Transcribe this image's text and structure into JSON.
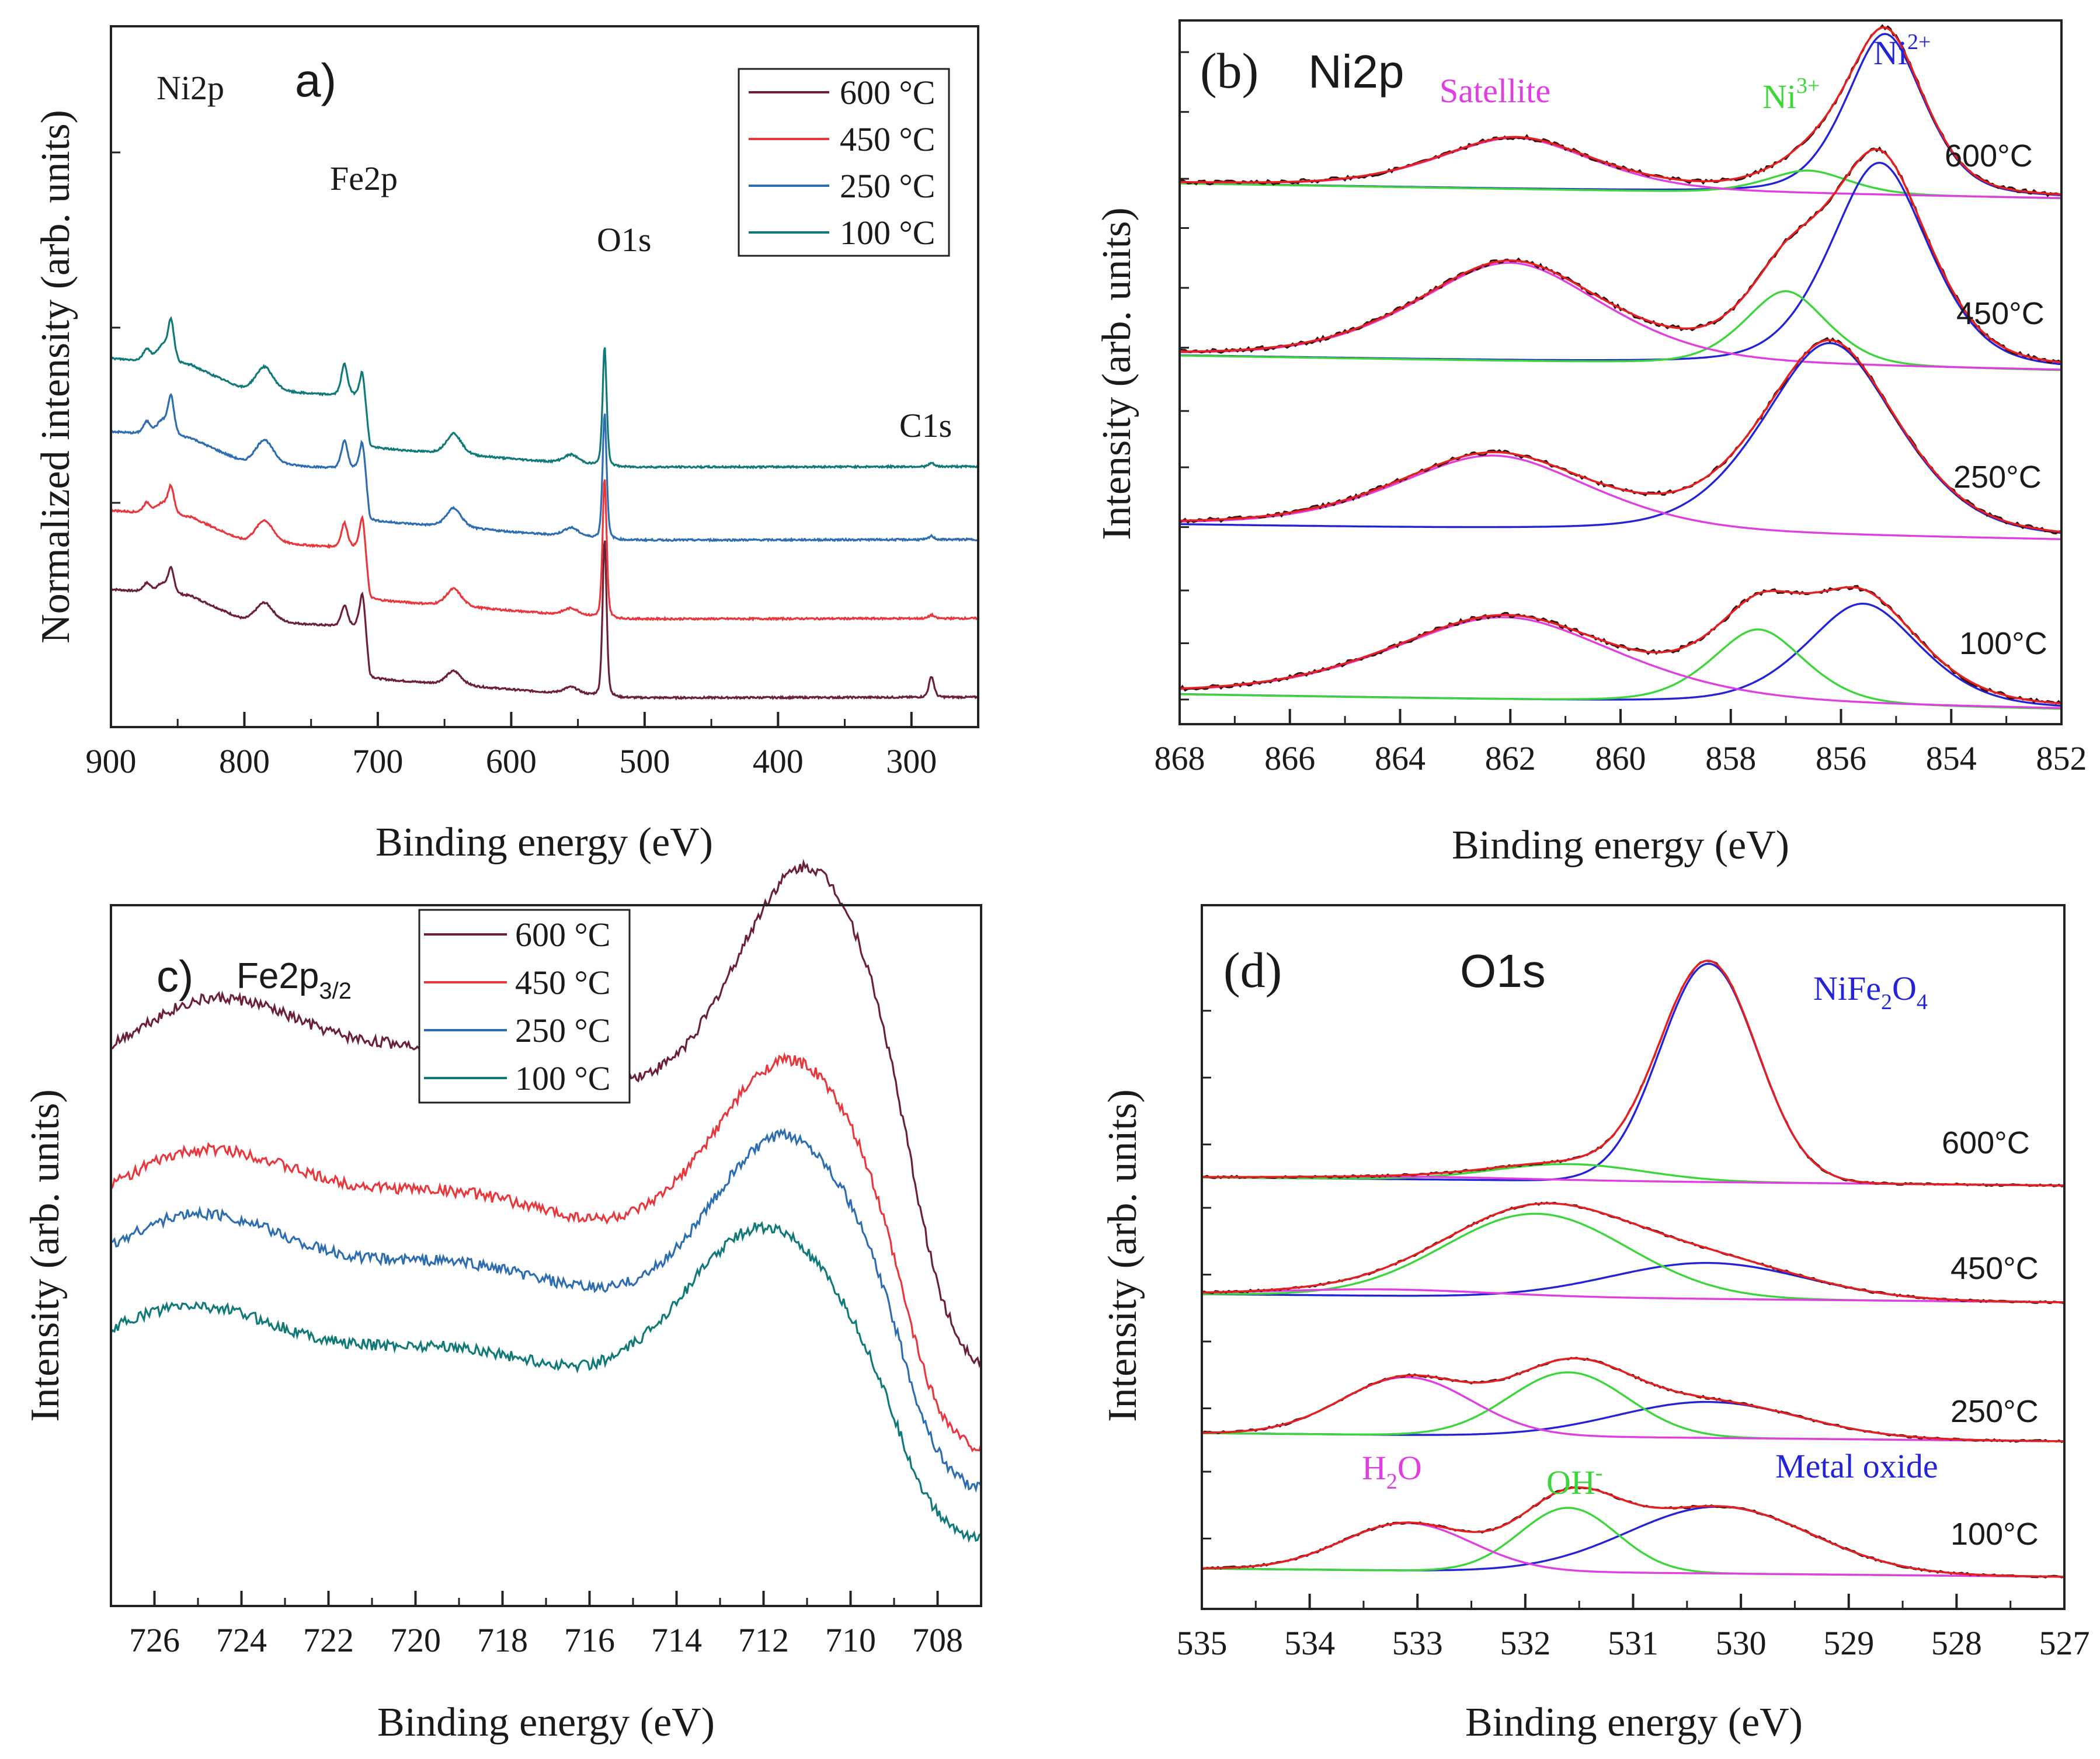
{
  "chart_data": [
    {
      "panel": "a",
      "type": "line",
      "label": "a)",
      "xlabel": "Binding energy (eV)",
      "ylabel": "Normalized intensity (arb. units)",
      "xlim": [
        900,
        250
      ],
      "xticks": [
        900,
        800,
        700,
        600,
        500,
        400,
        300
      ],
      "legend": {
        "position": "top-right",
        "entries": [
          {
            "name": "600 °C",
            "color": "#6b2038"
          },
          {
            "name": "450 °C",
            "color": "#e8383d"
          },
          {
            "name": "250 °C",
            "color": "#2e6db0"
          },
          {
            "name": "100 °C",
            "color": "#117a78"
          }
        ]
      },
      "annotations": [
        {
          "text": "Ni2p",
          "x": 855
        },
        {
          "text": "Fe2p",
          "x": 712
        },
        {
          "text": "O1s",
          "x": 530
        },
        {
          "text": "C1s",
          "x": 285
        }
      ],
      "series": [
        {
          "name": "600 °C",
          "color": "#6b2038",
          "offset": 0.0,
          "background": [
            [
              900,
              3.1
            ],
            [
              840,
              2.9
            ],
            [
              800,
              2.2
            ],
            [
              712,
              2.0
            ],
            [
              706,
              0.55
            ],
            [
              520,
              0.0
            ],
            [
              250,
              0.02
            ]
          ]
        },
        {
          "name": "450 °C",
          "color": "#e8383d",
          "offset": 1.0,
          "background": [
            [
              900,
              3.1
            ],
            [
              840,
              2.9
            ],
            [
              800,
              2.2
            ],
            [
              712,
              2.0
            ],
            [
              706,
              0.55
            ],
            [
              520,
              0.0
            ],
            [
              250,
              0.02
            ]
          ]
        },
        {
          "name": "250 °C",
          "color": "#2e6db0",
          "offset": 2.0,
          "background": [
            [
              900,
              3.1
            ],
            [
              840,
              2.9
            ],
            [
              800,
              2.2
            ],
            [
              712,
              2.0
            ],
            [
              706,
              0.55
            ],
            [
              520,
              0.0
            ],
            [
              250,
              0.02
            ]
          ]
        },
        {
          "name": "100 °C",
          "color": "#117a78",
          "offset": 3.0,
          "background": [
            [
              900,
              3.1
            ],
            [
              840,
              2.9
            ],
            [
              800,
              2.2
            ],
            [
              712,
              2.0
            ],
            [
              706,
              0.55
            ],
            [
              520,
              0.0
            ],
            [
              250,
              0.02
            ]
          ]
        }
      ],
      "peaks": [
        {
          "center": 855,
          "width": 2.5,
          "height": [
            0.7,
            0.8,
            1.1,
            1.2
          ]
        },
        {
          "center": 873,
          "width": 3,
          "height": [
            0.25,
            0.3,
            0.35,
            0.35
          ]
        },
        {
          "center": 862,
          "width": 4,
          "height": [
            0.25,
            0.3,
            0.4,
            0.45
          ]
        },
        {
          "center": 785,
          "width": 7,
          "height": [
            0.55,
            0.65,
            0.7,
            0.7
          ]
        },
        {
          "center": 725,
          "width": 2.5,
          "height": [
            0.6,
            0.7,
            0.8,
            0.9
          ]
        },
        {
          "center": 711,
          "width": 2.5,
          "height": [
            1.1,
            1.0,
            0.9,
            0.8
          ]
        },
        {
          "center": 643,
          "width": 6,
          "height": [
            0.4,
            0.5,
            0.55,
            0.6
          ]
        },
        {
          "center": 555,
          "width": 6,
          "height": [
            0.2,
            0.2,
            0.25,
            0.25
          ]
        },
        {
          "center": 530,
          "width": 1.6,
          "height": [
            4.5,
            4.0,
            3.6,
            3.4
          ]
        },
        {
          "center": 285,
          "width": 2.0,
          "height": [
            0.6,
            0.1,
            0.1,
            0.1
          ]
        }
      ]
    },
    {
      "panel": "b",
      "type": "line",
      "label": "(b)",
      "title": "Ni2p",
      "xlabel": "Binding energy (eV)",
      "ylabel": "Intensity (arb. units)",
      "xlim": [
        868,
        852
      ],
      "xticks": [
        868,
        866,
        864,
        862,
        860,
        858,
        856,
        854,
        852
      ],
      "annotations": [
        {
          "text": "Satellite",
          "color": "#e03ee0"
        },
        {
          "text": "Ni",
          "sup": "3+",
          "color": "#3cd63c"
        },
        {
          "text": "Ni",
          "sup": "2+",
          "color": "#2424d6"
        }
      ],
      "colors": {
        "data": "#3a1010",
        "fit": "#e62020",
        "ni2": "#2424d6",
        "ni3": "#3cd63c",
        "sat": "#e03ee0"
      },
      "stacks": [
        {
          "temp": "600°C",
          "base": 3.05,
          "peaks": {
            "ni2": {
              "c": 855.2,
              "w": 0.75,
              "h": 2.05
            },
            "ni3": {
              "c": 856.6,
              "w": 0.8,
              "h": 0.3
            },
            "sat": {
              "c": 861.9,
              "w": 1.5,
              "h": 0.65
            }
          }
        },
        {
          "temp": "450°C",
          "base": 2.05,
          "peaks": {
            "ni2": {
              "c": 855.3,
              "w": 0.95,
              "h": 2.6
            },
            "ni3": {
              "c": 857.0,
              "w": 0.8,
              "h": 0.95
            },
            "sat": {
              "c": 862.0,
              "w": 1.8,
              "h": 1.25
            }
          }
        },
        {
          "temp": "250°C",
          "base": 1.05,
          "peaks": {
            "ni2": {
              "c": 856.2,
              "w": 1.3,
              "h": 2.45
            },
            "sat": {
              "c": 862.3,
              "w": 1.9,
              "h": 0.95
            }
          }
        },
        {
          "temp": "100°C",
          "base": 0.05,
          "peaks": {
            "ni2": {
              "c": 855.6,
              "w": 1.1,
              "h": 1.3
            },
            "ni3": {
              "c": 857.5,
              "w": 0.9,
              "h": 0.95
            },
            "sat": {
              "c": 862.1,
              "w": 2.2,
              "h": 1.05
            }
          }
        }
      ]
    },
    {
      "panel": "c",
      "type": "line",
      "label": "c)",
      "title": "Fe2p",
      "title_sub": "3/2",
      "xlabel": "Binding energy (eV)",
      "ylabel": "Intensity (arb. units)",
      "xlim": [
        727,
        707
      ],
      "xticks": [
        726,
        724,
        722,
        720,
        718,
        716,
        714,
        712,
        710,
        708
      ],
      "legend": {
        "position": "top-left",
        "entries": [
          {
            "name": "600 °C",
            "color": "#6b2038"
          },
          {
            "name": "450 °C",
            "color": "#e8383d"
          },
          {
            "name": "250 °C",
            "color": "#2e6db0"
          },
          {
            "name": "100 °C",
            "color": "#117a78"
          }
        ]
      },
      "series": [
        {
          "name": "600 °C",
          "color": "#6b2038",
          "offset": 3.2,
          "peak2p1": {
            "c": 724.6,
            "w": 1.6,
            "h": 0.75
          },
          "peak2p3": {
            "c": 711.0,
            "w": 1.3,
            "h": 1.85
          },
          "plateau": 0.75,
          "edge": 708.5
        },
        {
          "name": "450 °C",
          "color": "#e8383d",
          "offset": 2.05,
          "peak2p1": {
            "c": 724.8,
            "w": 1.7,
            "h": 0.7
          },
          "peak2p3": {
            "c": 711.4,
            "w": 1.4,
            "h": 1.45
          },
          "plateau": 0.72,
          "edge": 708.7
        },
        {
          "name": "250 °C",
          "color": "#2e6db0",
          "offset": 1.45,
          "peak2p1": {
            "c": 725.0,
            "w": 1.7,
            "h": 0.75
          },
          "peak2p3": {
            "c": 711.5,
            "w": 1.4,
            "h": 1.4
          },
          "plateau": 0.75,
          "edge": 708.7
        },
        {
          "name": "100 °C",
          "color": "#117a78",
          "offset": 0.75,
          "peak2p1": {
            "c": 725.2,
            "w": 1.8,
            "h": 0.7
          },
          "peak2p3": {
            "c": 712.0,
            "w": 1.5,
            "h": 1.35
          },
          "plateau": 0.75,
          "edge": 708.8
        }
      ]
    },
    {
      "panel": "d",
      "type": "line",
      "label": "(d)",
      "title": "O1s",
      "xlabel": "Binding energy (eV)",
      "ylabel": "Intensity (arb. units)",
      "xlim": [
        535,
        527
      ],
      "xticks": [
        535,
        534,
        533,
        532,
        531,
        530,
        529,
        528,
        527
      ],
      "annotations": [
        {
          "text": "NiFe",
          "sub1": "2",
          "mid": "O",
          "sub2": "4",
          "color": "#2424d6"
        },
        {
          "text": "H",
          "sub1": "2",
          "mid": "O",
          "color": "#e03ee0"
        },
        {
          "text": "OH",
          "sup": "-",
          "color": "#3cd63c"
        },
        {
          "text": "Metal oxide",
          "color": "#2424d6"
        }
      ],
      "colors": {
        "data": "#3a1010",
        "fit": "#e62020",
        "oxide": "#2424d6",
        "oh": "#3cd63c",
        "h2o": "#e03ee0"
      },
      "stacks": [
        {
          "temp": "600°C",
          "base": 3.0,
          "peaks": {
            "oxide": {
              "c": 530.3,
              "w": 0.45,
              "h": 1.7
            },
            "oh": {
              "c": 531.6,
              "w": 0.7,
              "h": 0.13
            },
            "h2o": {
              "c": 533.0,
              "w": 1.0,
              "h": 0.02
            }
          }
        },
        {
          "temp": "450°C",
          "base": 2.05,
          "peaks": {
            "oxide": {
              "c": 530.3,
              "w": 0.9,
              "h": 0.28
            },
            "oh": {
              "c": 531.9,
              "w": 0.85,
              "h": 0.65
            },
            "h2o": {
              "c": 533.3,
              "w": 1.0,
              "h": 0.05
            }
          }
        },
        {
          "temp": "250°C",
          "base": 1.0,
          "peaks": {
            "oxide": {
              "c": 530.3,
              "w": 0.85,
              "h": 0.28
            },
            "oh": {
              "c": 531.6,
              "w": 0.55,
              "h": 0.5
            },
            "h2o": {
              "c": 533.1,
              "w": 0.6,
              "h": 0.45
            }
          }
        },
        {
          "temp": "100°C",
          "base": 0.0,
          "peaks": {
            "oxide": {
              "c": 530.2,
              "w": 0.85,
              "h": 0.52
            },
            "oh": {
              "c": 531.6,
              "w": 0.45,
              "h": 0.5
            },
            "h2o": {
              "c": 533.1,
              "w": 0.6,
              "h": 0.37
            }
          }
        }
      ]
    }
  ]
}
